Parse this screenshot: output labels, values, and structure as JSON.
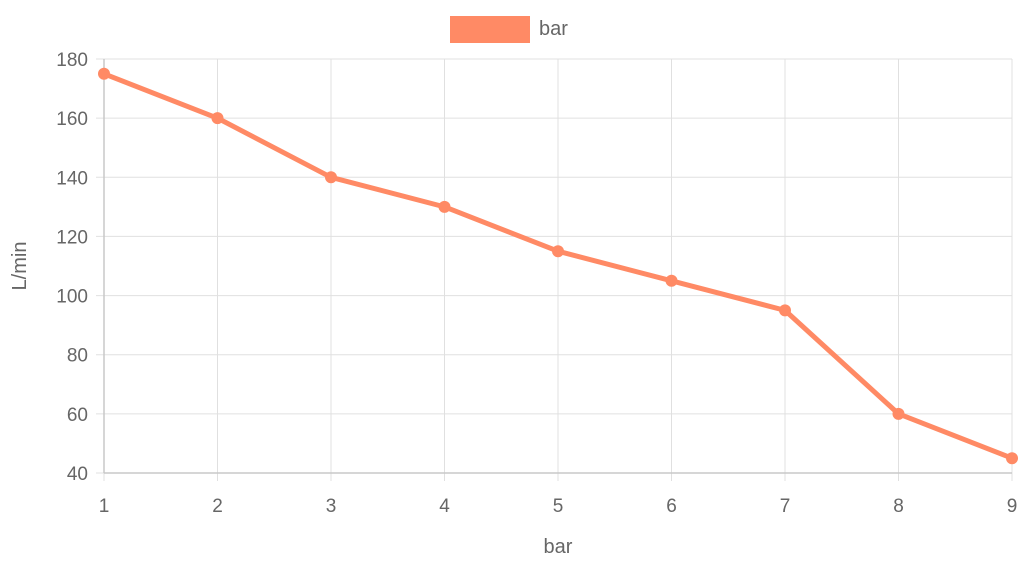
{
  "chart_data": {
    "type": "line",
    "x": [
      1,
      2,
      3,
      4,
      5,
      6,
      7,
      8,
      9
    ],
    "series": [
      {
        "name": "bar",
        "values": [
          175,
          160,
          140,
          130,
          115,
          105,
          95,
          60,
          45
        ],
        "color": "#ff8a65"
      }
    ],
    "xlabel": "bar",
    "ylabel": "L/min",
    "ylim": [
      40,
      180
    ],
    "yticks": [
      40,
      60,
      80,
      100,
      120,
      140,
      160,
      180
    ],
    "xticks": [
      1,
      2,
      3,
      4,
      5,
      6,
      7,
      8,
      9
    ],
    "grid": true,
    "legend": "top-center"
  }
}
